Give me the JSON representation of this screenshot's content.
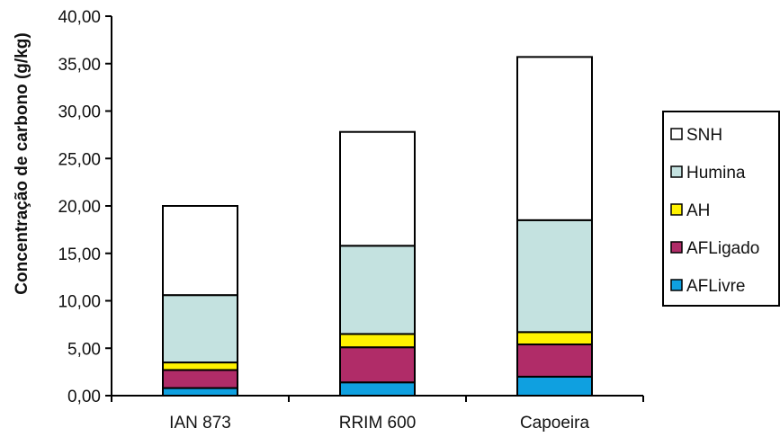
{
  "chart_data": {
    "type": "bar",
    "stacked": true,
    "categories": [
      "IAN 873",
      "RRIM 600",
      "Capoeira"
    ],
    "series": [
      {
        "name": "AFLivre",
        "color": "#0FA0E0",
        "values": [
          0.8,
          1.4,
          2.0
        ]
      },
      {
        "name": "AFLigado",
        "color": "#B02C68",
        "values": [
          1.9,
          3.7,
          3.4
        ]
      },
      {
        "name": "AH",
        "color": "#FFF200",
        "values": [
          0.8,
          1.4,
          1.3
        ]
      },
      {
        "name": "Humina",
        "color": "#C4E2E0",
        "values": [
          7.1,
          9.3,
          11.8
        ]
      },
      {
        "name": "SNH",
        "color": "#FFFFFF",
        "values": [
          9.4,
          12.0,
          17.2
        ]
      }
    ],
    "ylabel": "Concentração de carbono (g/kg)",
    "xlabel": "",
    "ylim": [
      0,
      40
    ],
    "yticks": [
      "0,00",
      "5,00",
      "10,00",
      "15,00",
      "20,00",
      "25,00",
      "30,00",
      "35,00",
      "40,00"
    ],
    "legend_position": "right",
    "legend_order": [
      "SNH",
      "Humina",
      "AH",
      "AFLigado",
      "AFLivre"
    ],
    "grid": false
  }
}
